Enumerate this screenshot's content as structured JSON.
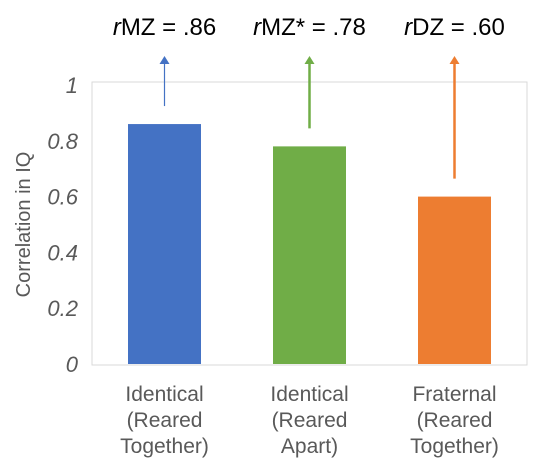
{
  "chart_data": {
    "type": "bar",
    "ylabel": "Correlation in IQ",
    "ylim": [
      0,
      1
    ],
    "yticks": [
      "0",
      "0.2",
      "0.4",
      "0.6",
      "0.8",
      "1"
    ],
    "grid": false,
    "categories": [
      [
        "Identical",
        "(Reared",
        "Together)"
      ],
      [
        "Identical",
        "(Reared",
        "Apart)"
      ],
      [
        "Fraternal",
        "(Reared",
        "Together)"
      ]
    ],
    "values": [
      0.86,
      0.78,
      0.6
    ],
    "colors": [
      "#4472c4",
      "#70ad47",
      "#ed7d31"
    ],
    "annotations": [
      {
        "prefix": "r",
        "text": "MZ = .86",
        "color": "#4472c4"
      },
      {
        "prefix": "r",
        "text": "MZ* = .78",
        "color": "#70ad47"
      },
      {
        "prefix": "r",
        "text": "DZ = .60",
        "color": "#ed7d31"
      }
    ]
  }
}
